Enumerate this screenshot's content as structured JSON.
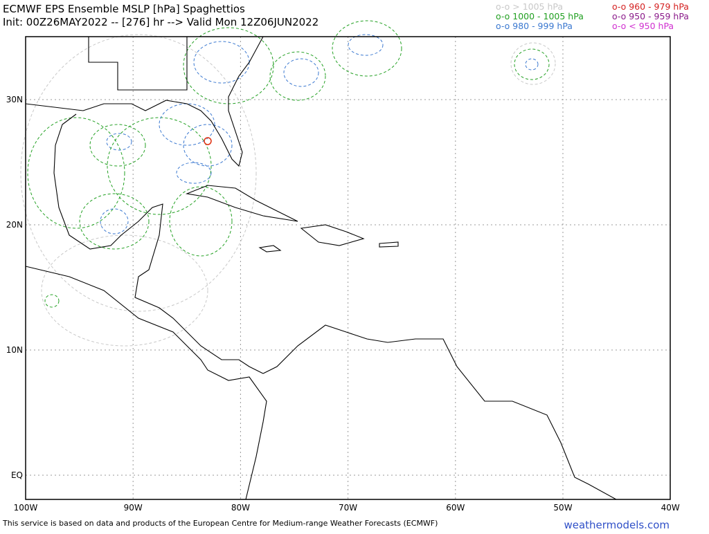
{
  "header": {
    "title": "ECMWF EPS Ensemble MSLP [hPa] Spaghettios",
    "init": "Init: 00Z26MAY2022 -- [276] hr --> Valid Mon 12Z06JUN2022"
  },
  "legend": [
    {
      "label": "o-o > 1005 hPa",
      "color": "#c8c8c8"
    },
    {
      "label": "o-o 1000 - 1005 hPa",
      "color": "#22a022"
    },
    {
      "label": "o-o 980 - 999 hPa",
      "color": "#3a78d0"
    },
    {
      "label": "o-o 960 - 979 hPa",
      "color": "#d42020"
    },
    {
      "label": "o-o 950 - 959 hPa",
      "color": "#8a1a8a"
    },
    {
      "label": "o-o < 950 hPa",
      "color": "#d030d0"
    }
  ],
  "axes": {
    "lon_labels": [
      "100W",
      "90W",
      "80W",
      "70W",
      "60W",
      "50W",
      "40W"
    ],
    "lat_labels": [
      "30N",
      "20N",
      "10N",
      "EQ"
    ]
  },
  "footer": {
    "credit": "This service is based on data and products of the European Centre for Medium-range Weather Forecasts (ECMWF)",
    "brand": "weathermodels.com"
  }
}
